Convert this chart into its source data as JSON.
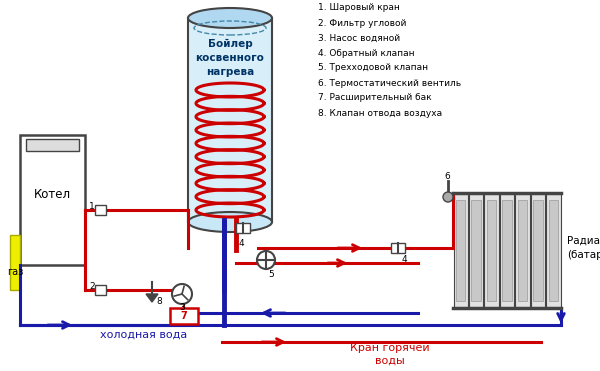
{
  "bg_color": "#ffffff",
  "legend_items": [
    "1. Шаровый кран",
    "2. Фильтр угловой",
    "3. Насос водяной",
    "4. Обратный клапан",
    "5. Трехходовой клапан",
    "6. Термостатический вентиль",
    "7. Расширительный бак",
    "8. Клапан отвода воздуха"
  ],
  "red": "#cc0000",
  "blue": "#1a1aaa",
  "dgray": "#444444",
  "lgray": "#bbbbbb",
  "yellow": "#eeee00",
  "boiler_label": "Бойлер\nкосвенного\nнагрева",
  "kotel_label": "Котел",
  "gaz_label": "газ",
  "cold_water_label": "холодная вода",
  "hot_water_label": "Кран горячей\nводы",
  "radiator_label": "Радиатор\n(батарея)"
}
